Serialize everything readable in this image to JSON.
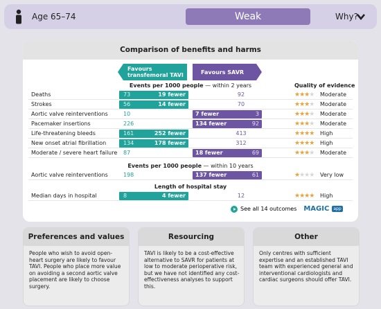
{
  "header": {
    "age": "Age 65–74",
    "recommendation": "Weak",
    "why": "Why?"
  },
  "comparison": {
    "title": "Comparison of benefits and harms",
    "favours_tavi": "Favours transfemoral TAVI",
    "favours_savr": "Favours SAVR",
    "quality_heading": "Quality of evidence",
    "sections": [
      {
        "heading": "Events per 1000 people",
        "subheading": "— within 2 years",
        "rows": [
          {
            "label": "Deaths",
            "tavi": 73,
            "difference": "19 fewer",
            "savr": 92,
            "favours": "tavi",
            "stars": 3,
            "quality": "Moderate"
          },
          {
            "label": "Strokes",
            "tavi": 56,
            "difference": "14 fewer",
            "savr": 70,
            "favours": "tavi",
            "stars": 3,
            "quality": "Moderate"
          },
          {
            "label": "Aortic valve reinterventions",
            "tavi": 10,
            "difference": "7 fewer",
            "savr": 3,
            "favours": "savr",
            "stars": 3,
            "quality": "Moderate"
          },
          {
            "label": "Pacemaker insertions",
            "tavi": 226,
            "difference": "134 fewer",
            "savr": 92,
            "favours": "savr",
            "stars": 3,
            "quality": "Moderate"
          },
          {
            "label": "Life-threatening bleeds",
            "tavi": 161,
            "difference": "252 fewer",
            "savr": 413,
            "favours": "tavi",
            "stars": 4,
            "quality": "High"
          },
          {
            "label": "New onset atrial fibrillation",
            "tavi": 134,
            "difference": "178 fewer",
            "savr": 312,
            "favours": "tavi",
            "stars": 4,
            "quality": "High"
          },
          {
            "label": "Moderate / severe heart failure",
            "tavi": 87,
            "difference": "18 fewer",
            "savr": 69,
            "favours": "savr",
            "stars": 3,
            "quality": "Moderate"
          }
        ]
      },
      {
        "heading": "Events per 1000 people",
        "subheading": "— within 10 years",
        "rows": [
          {
            "label": "Aortic valve reinterventions",
            "tavi": 198,
            "difference": "137 fewer",
            "savr": 61,
            "favours": "savr",
            "stars": 1,
            "quality": "Very low"
          }
        ]
      },
      {
        "heading": "Length of hospital stay",
        "rows": [
          {
            "label": "Median days in hospital",
            "tavi": 8,
            "difference": "4 fewer",
            "savr": 12,
            "favours": "tavi",
            "stars": 4,
            "quality": "High"
          }
        ]
      }
    ],
    "link": "See all 14 outcomes",
    "brand": "MAGIC",
    "brand_badge": "app"
  },
  "panels": [
    {
      "title": "Preferences and values",
      "text": "People who wish to avoid open-heart surgery are likely to favour TAVI. People who place more value on avoiding a second aortic valve placement are likely to choose surgery."
    },
    {
      "title": "Resourcing",
      "text": "TAVI is likely to be a cost-effective alternative to SAVR for patients at low to moderate perioperative risk, but we have not identified any cost-effectiveness analyses to support this."
    },
    {
      "title": "Other",
      "text": "Only centres with sufficient expertise and an established TAVI team with experienced general and interventional cardiologists and cardiac surgeons should offer TAVI."
    }
  ]
}
